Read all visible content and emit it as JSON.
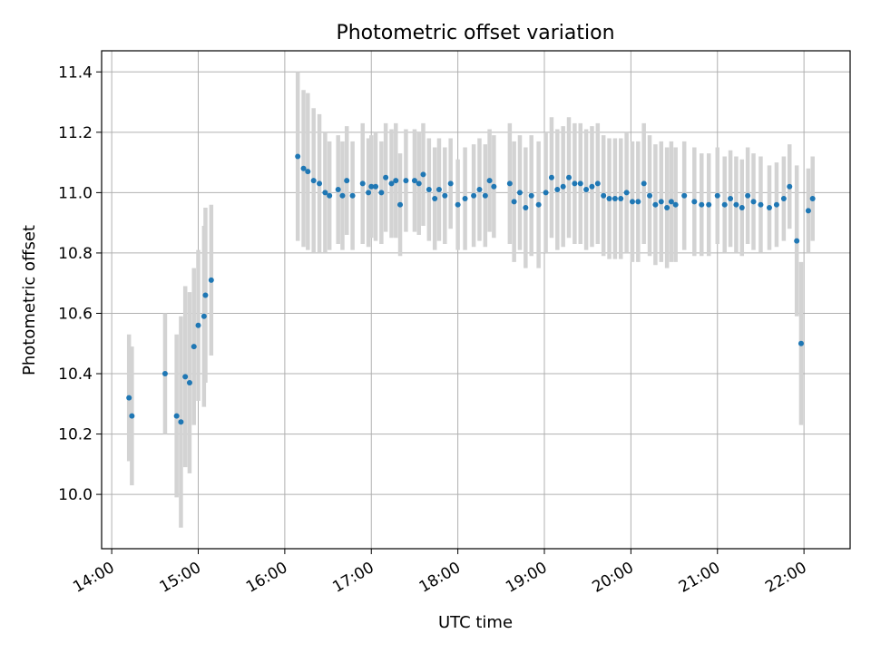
{
  "chart_data": {
    "type": "scatter",
    "title": "Photometric offset variation",
    "xlabel": "UTC time",
    "ylabel": "Photometric offset",
    "x_tick_labels": [
      "14:00",
      "15:00",
      "16:00",
      "17:00",
      "18:00",
      "19:00",
      "20:00",
      "21:00",
      "22:00"
    ],
    "y_tick_labels": [
      "10.0",
      "10.2",
      "10.4",
      "10.6",
      "10.8",
      "11.0",
      "11.2",
      "11.4"
    ],
    "xlim": [
      "13:53",
      "22:32"
    ],
    "ylim": [
      9.82,
      11.47
    ],
    "grid": true,
    "marker_color": "#1f77b4",
    "errorbar_color": "#d3d3d3",
    "series": [
      {
        "x": [
          "14:12",
          "14:14",
          "14:37",
          "14:45",
          "14:48",
          "14:51",
          "14:54",
          "14:57",
          "15:00",
          "15:04",
          "15:05",
          "15:09",
          "16:09",
          "16:13",
          "16:16",
          "16:20",
          "16:24",
          "16:28",
          "16:31",
          "16:37",
          "16:40",
          "16:43",
          "16:47",
          "16:54",
          "16:58",
          "17:00",
          "17:03",
          "17:07",
          "17:10",
          "17:14",
          "17:17",
          "17:20",
          "17:24",
          "17:30",
          "17:33",
          "17:36",
          "17:40",
          "17:44",
          "17:47",
          "17:51",
          "17:55",
          "18:00",
          "18:05",
          "18:11",
          "18:15",
          "18:19",
          "18:22",
          "18:25",
          "18:36",
          "18:39",
          "18:43",
          "18:47",
          "18:51",
          "18:56",
          "19:01",
          "19:05",
          "19:09",
          "19:13",
          "19:17",
          "19:21",
          "19:25",
          "19:29",
          "19:33",
          "19:37",
          "19:41",
          "19:45",
          "19:49",
          "19:53",
          "19:57",
          "20:01",
          "20:05",
          "20:09",
          "20:13",
          "20:17",
          "20:21",
          "20:25",
          "20:28",
          "20:31",
          "20:37",
          "20:44",
          "20:49",
          "20:54",
          "21:00",
          "21:05",
          "21:09",
          "21:13",
          "21:17",
          "21:21",
          "21:25",
          "21:30",
          "21:36",
          "21:41",
          "21:46",
          "21:50",
          "21:55",
          "21:58",
          "22:03",
          "22:06"
        ],
        "y": [
          10.32,
          10.26,
          10.4,
          10.26,
          10.24,
          10.39,
          10.37,
          10.49,
          10.56,
          10.59,
          10.66,
          10.71,
          11.12,
          11.08,
          11.07,
          11.04,
          11.03,
          11.0,
          10.99,
          11.01,
          10.99,
          11.04,
          10.99,
          11.03,
          11.0,
          11.02,
          11.02,
          11.0,
          11.05,
          11.03,
          11.04,
          10.96,
          11.04,
          11.04,
          11.03,
          11.06,
          11.01,
          10.98,
          11.01,
          10.99,
          11.03,
          10.96,
          10.98,
          10.99,
          11.01,
          10.99,
          11.04,
          11.02,
          11.03,
          10.97,
          11.0,
          10.95,
          10.99,
          10.96,
          11.0,
          11.05,
          11.01,
          11.02,
          11.05,
          11.03,
          11.03,
          11.01,
          11.02,
          11.03,
          10.99,
          10.98,
          10.98,
          10.98,
          11.0,
          10.97,
          10.97,
          11.03,
          10.99,
          10.96,
          10.97,
          10.95,
          10.97,
          10.96,
          10.99,
          10.97,
          10.96,
          10.96,
          10.99,
          10.96,
          10.98,
          10.96,
          10.95,
          10.99,
          10.97,
          10.96,
          10.95,
          10.96,
          10.98,
          11.02,
          10.84,
          10.5,
          10.94,
          10.98
        ],
        "err": [
          0.21,
          0.23,
          0.2,
          0.27,
          0.35,
          0.3,
          0.3,
          0.26,
          0.25,
          0.3,
          0.29,
          0.25,
          0.28,
          0.26,
          0.26,
          0.24,
          0.23,
          0.2,
          0.18,
          0.18,
          0.18,
          0.18,
          0.18,
          0.2,
          0.18,
          0.17,
          0.18,
          0.17,
          0.18,
          0.18,
          0.19,
          0.17,
          0.17,
          0.17,
          0.17,
          0.17,
          0.17,
          0.17,
          0.17,
          0.16,
          0.15,
          0.15,
          0.17,
          0.17,
          0.17,
          0.17,
          0.17,
          0.17,
          0.2,
          0.2,
          0.19,
          0.2,
          0.2,
          0.21,
          0.2,
          0.2,
          0.2,
          0.2,
          0.2,
          0.2,
          0.2,
          0.2,
          0.2,
          0.2,
          0.2,
          0.2,
          0.2,
          0.2,
          0.2,
          0.2,
          0.2,
          0.2,
          0.2,
          0.2,
          0.2,
          0.2,
          0.2,
          0.19,
          0.18,
          0.18,
          0.17,
          0.17,
          0.16,
          0.16,
          0.16,
          0.16,
          0.16,
          0.16,
          0.16,
          0.16,
          0.14,
          0.14,
          0.14,
          0.14,
          0.25,
          0.27,
          0.14,
          0.14
        ]
      }
    ]
  }
}
